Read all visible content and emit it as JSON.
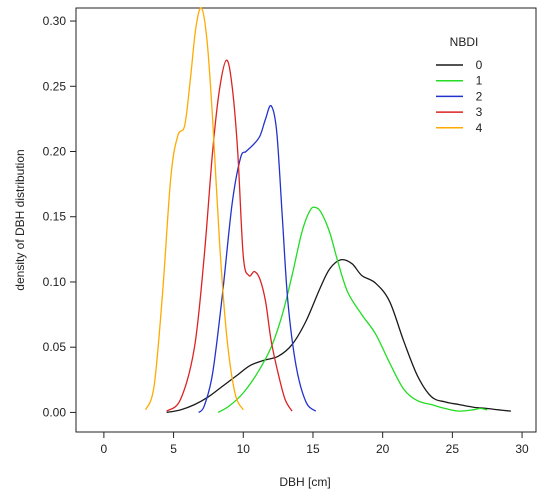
{
  "chart_data": {
    "type": "line",
    "title": "",
    "xlabel": "DBH [cm]",
    "ylabel": "density of DBH distribution",
    "xlim": [
      -2,
      31
    ],
    "ylim": [
      -0.015,
      0.31
    ],
    "xticks": [
      0,
      5,
      10,
      15,
      20,
      25,
      30
    ],
    "yticks": [
      0.0,
      0.05,
      0.1,
      0.15,
      0.2,
      0.25,
      0.3
    ],
    "ytick_labels": [
      "0.00",
      "0.05",
      "0.10",
      "0.15",
      "0.20",
      "0.25",
      "0.30"
    ],
    "grid": false,
    "legend": {
      "title": "NBDI",
      "placement": "top-right"
    },
    "series": [
      {
        "name": "0",
        "color": "#1a1a1a",
        "x": [
          4.5,
          5.5,
          6.5,
          7.5,
          8.5,
          9.5,
          10.5,
          11.5,
          12.5,
          13.5,
          14.5,
          15.5,
          16.2,
          17,
          17.8,
          18.5,
          19.5,
          20.5,
          21.5,
          22.5,
          23.5,
          24.5,
          25.5,
          26.5,
          27.5,
          28.3,
          29.2
        ],
        "y": [
          0.0,
          0.002,
          0.006,
          0.012,
          0.02,
          0.028,
          0.036,
          0.04,
          0.043,
          0.052,
          0.07,
          0.095,
          0.11,
          0.117,
          0.114,
          0.105,
          0.099,
          0.085,
          0.055,
          0.028,
          0.012,
          0.008,
          0.006,
          0.004,
          0.003,
          0.002,
          0.001
        ]
      },
      {
        "name": "1",
        "color": "#22dd22",
        "x": [
          8.2,
          9,
          10,
          11,
          12,
          12.8,
          13.5,
          14.2,
          14.8,
          15.2,
          15.6,
          16.2,
          16.8,
          17.5,
          18.5,
          19.5,
          20.5,
          21.5,
          22.5,
          23.5,
          24.5,
          25.5,
          26.5,
          27,
          27.5
        ],
        "y": [
          0.0,
          0.005,
          0.015,
          0.03,
          0.05,
          0.075,
          0.105,
          0.138,
          0.155,
          0.157,
          0.153,
          0.138,
          0.115,
          0.092,
          0.075,
          0.06,
          0.038,
          0.018,
          0.009,
          0.006,
          0.003,
          0.001,
          0.002,
          0.003,
          0.002
        ]
      },
      {
        "name": "2",
        "color": "#2233cc",
        "x": [
          6.8,
          7.2,
          7.8,
          8.5,
          9.2,
          9.8,
          10.2,
          10.7,
          11.2,
          11.6,
          12,
          12.4,
          12.8,
          13.2,
          13.8,
          14.5,
          15.2
        ],
        "y": [
          0.0,
          0.005,
          0.03,
          0.09,
          0.16,
          0.195,
          0.2,
          0.205,
          0.212,
          0.225,
          0.235,
          0.215,
          0.15,
          0.085,
          0.035,
          0.008,
          0.001
        ]
      },
      {
        "name": "3",
        "color": "#dd2222",
        "x": [
          4.5,
          5.5,
          6.5,
          7.2,
          7.8,
          8.3,
          8.8,
          9.2,
          9.6,
          10,
          10.4,
          10.8,
          11.2,
          11.6,
          12,
          12.5,
          13,
          13.5
        ],
        "y": [
          0.001,
          0.01,
          0.05,
          0.12,
          0.2,
          0.248,
          0.27,
          0.25,
          0.2,
          0.12,
          0.105,
          0.108,
          0.102,
          0.085,
          0.055,
          0.03,
          0.01,
          0.001
        ]
      },
      {
        "name": "4",
        "color": "#ffaa00",
        "x": [
          3.0,
          3.6,
          4.2,
          4.8,
          5.3,
          5.8,
          6.2,
          6.6,
          7.0,
          7.4,
          7.8,
          8.3,
          8.8,
          9.4,
          10.0
        ],
        "y": [
          0.002,
          0.02,
          0.09,
          0.18,
          0.212,
          0.22,
          0.255,
          0.295,
          0.31,
          0.285,
          0.225,
          0.13,
          0.06,
          0.015,
          0.002
        ]
      }
    ]
  }
}
